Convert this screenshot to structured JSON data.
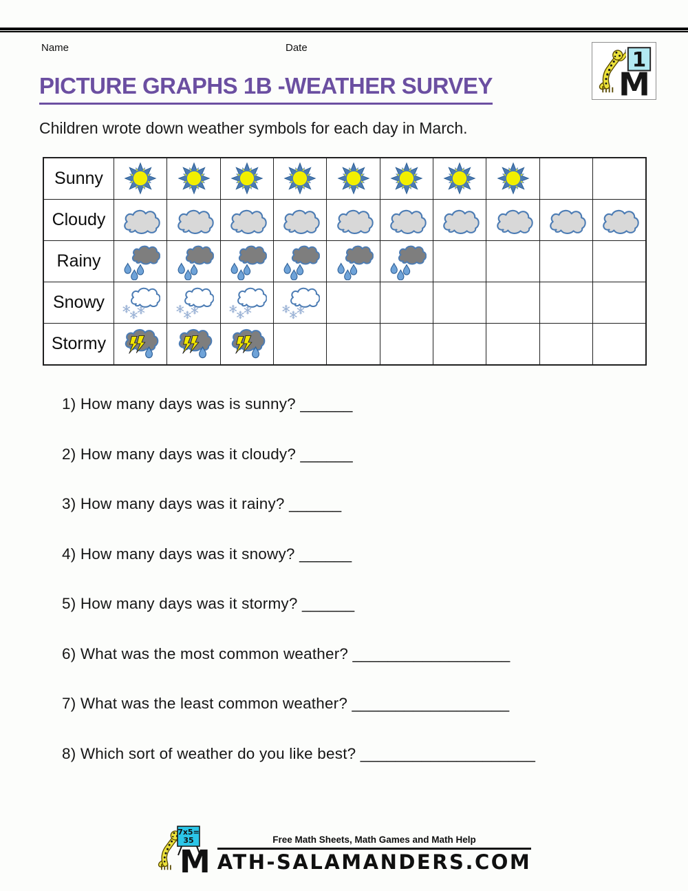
{
  "page": {
    "name_label": "Name",
    "date_label": "Date",
    "title": "PICTURE GRAPHS 1B -WEATHER SURVEY",
    "intro": "Children wrote down weather symbols for each day in March."
  },
  "header_logo": {
    "badge": "1",
    "logo_m": "M"
  },
  "chart_data": {
    "type": "pictograph",
    "columns": 10,
    "rows": [
      {
        "label": "Sunny",
        "icon": "sun",
        "count": 8
      },
      {
        "label": "Cloudy",
        "icon": "cloud",
        "count": 10
      },
      {
        "label": "Rainy",
        "icon": "rain",
        "count": 6
      },
      {
        "label": "Snowy",
        "icon": "snow",
        "count": 4
      },
      {
        "label": "Stormy",
        "icon": "storm",
        "count": 3
      }
    ]
  },
  "questions": [
    "1) How many days was is sunny? ______",
    "2) How many days was it cloudy? ______",
    "3) How many days was it rainy? ______",
    "4) How many days was it snowy? ______",
    "5) How many days was it stormy? ______",
    "6) What was the most common weather? __________________",
    "7) What was the least common weather? __________________",
    "8) Which sort of weather do you like best? ____________________"
  ],
  "footer": {
    "board_line1": "7x5=",
    "board_line2": "35",
    "logo_m": "M",
    "tagline": "Free Math Sheets, Math Games and Math Help",
    "site_name": "ATH-SALAMANDERS.COM"
  },
  "colors": {
    "title_purple": "#6b4fa1",
    "icon_blue": "#4c7cb4",
    "sun_yellow": "#f2ef00",
    "cloud_light_gray": "#d8d8d8",
    "cloud_dark_gray": "#7e7e7e",
    "drop_blue": "#6fa3d8",
    "snowflake_blue": "#9db4d6",
    "bolt_yellow": "#f2e600",
    "header_board_cyan": "#b2e9f2",
    "footer_board_cyan": "#2cc6e8",
    "salamander_yellow": "#ece23a"
  }
}
